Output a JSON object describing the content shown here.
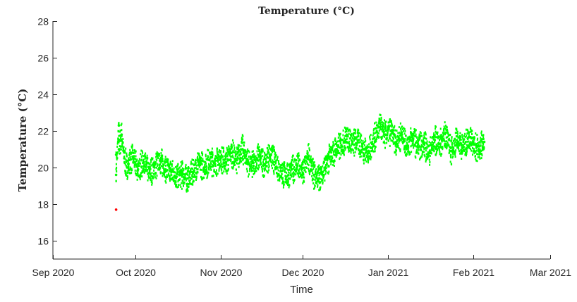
{
  "chart_data": {
    "type": "scatter",
    "title": "Temperature (°C)",
    "xlabel": "Time",
    "ylabel": "Temperature (°C)",
    "xlim": [
      "2020-09-01",
      "2021-03-01"
    ],
    "ylim": [
      15,
      28
    ],
    "xticks": [
      {
        "date": "2020-09-01",
        "label": "Sep 2020"
      },
      {
        "date": "2020-10-01",
        "label": "Oct 2020"
      },
      {
        "date": "2020-11-01",
        "label": "Nov 2020"
      },
      {
        "date": "2020-12-01",
        "label": "Dec 2020"
      },
      {
        "date": "2021-01-01",
        "label": "Jan 2021"
      },
      {
        "date": "2021-02-01",
        "label": "Feb 2021"
      },
      {
        "date": "2021-03-01",
        "label": "Mar 2021"
      }
    ],
    "yticks": [
      16,
      18,
      20,
      22,
      24,
      26,
      28
    ],
    "grid": false,
    "series": [
      {
        "color": "#00ff00",
        "marker": "dot",
        "points": [
          [
            "2020-09-24",
            20.7
          ],
          [
            "2020-09-24",
            19.6
          ],
          [
            "2020-09-25",
            22.3
          ],
          [
            "2020-09-25",
            21.0
          ],
          [
            "2020-09-26",
            21.8
          ],
          [
            "2020-09-27",
            20.5
          ],
          [
            "2020-09-28",
            20.0
          ],
          [
            "2020-09-30",
            20.6
          ],
          [
            "2020-10-02",
            19.9
          ],
          [
            "2020-10-04",
            20.3
          ],
          [
            "2020-10-06",
            19.7
          ],
          [
            "2020-10-08",
            20.0
          ],
          [
            "2020-10-10",
            20.4
          ],
          [
            "2020-10-12",
            19.9
          ],
          [
            "2020-10-14",
            19.8
          ],
          [
            "2020-10-16",
            19.5
          ],
          [
            "2020-10-18",
            19.6
          ],
          [
            "2020-10-20",
            19.4
          ],
          [
            "2020-10-22",
            19.7
          ],
          [
            "2020-10-24",
            20.3
          ],
          [
            "2020-10-26",
            20.0
          ],
          [
            "2020-10-28",
            20.4
          ],
          [
            "2020-10-30",
            20.2
          ],
          [
            "2020-11-01",
            20.5
          ],
          [
            "2020-11-03",
            20.3
          ],
          [
            "2020-11-05",
            20.8
          ],
          [
            "2020-11-07",
            20.4
          ],
          [
            "2020-11-09",
            21.0
          ],
          [
            "2020-11-11",
            20.3
          ],
          [
            "2020-11-13",
            20.1
          ],
          [
            "2020-11-15",
            20.6
          ],
          [
            "2020-11-17",
            20.2
          ],
          [
            "2020-11-19",
            20.7
          ],
          [
            "2020-11-21",
            20.3
          ],
          [
            "2020-11-23",
            19.8
          ],
          [
            "2020-11-25",
            19.5
          ],
          [
            "2020-11-27",
            19.9
          ],
          [
            "2020-11-29",
            20.1
          ],
          [
            "2020-12-01",
            19.7
          ],
          [
            "2020-12-03",
            20.6
          ],
          [
            "2020-12-05",
            19.6
          ],
          [
            "2020-12-07",
            19.4
          ],
          [
            "2020-12-09",
            20.0
          ],
          [
            "2020-12-11",
            20.6
          ],
          [
            "2020-12-13",
            21.0
          ],
          [
            "2020-12-15",
            21.2
          ],
          [
            "2020-12-17",
            21.7
          ],
          [
            "2020-12-19",
            21.3
          ],
          [
            "2020-12-21",
            21.5
          ],
          [
            "2020-12-23",
            21.0
          ],
          [
            "2020-12-25",
            20.8
          ],
          [
            "2020-12-27",
            21.6
          ],
          [
            "2020-12-29",
            22.2
          ],
          [
            "2020-12-31",
            21.8
          ],
          [
            "2021-01-02",
            22.0
          ],
          [
            "2021-01-04",
            21.4
          ],
          [
            "2021-01-06",
            21.8
          ],
          [
            "2021-01-08",
            21.2
          ],
          [
            "2021-01-10",
            21.6
          ],
          [
            "2021-01-12",
            21.1
          ],
          [
            "2021-01-14",
            21.3
          ],
          [
            "2021-01-16",
            20.8
          ],
          [
            "2021-01-18",
            21.5
          ],
          [
            "2021-01-20",
            21.3
          ],
          [
            "2021-01-22",
            21.9
          ],
          [
            "2021-01-24",
            20.9
          ],
          [
            "2021-01-26",
            21.5
          ],
          [
            "2021-01-28",
            21.1
          ],
          [
            "2021-01-30",
            21.6
          ],
          [
            "2021-02-01",
            21.3
          ],
          [
            "2021-02-03",
            21.0
          ],
          [
            "2021-02-05",
            21.4
          ]
        ]
      },
      {
        "color": "#ff0000",
        "marker": "dot",
        "points": [
          [
            "2020-09-24",
            17.7
          ]
        ]
      }
    ]
  }
}
